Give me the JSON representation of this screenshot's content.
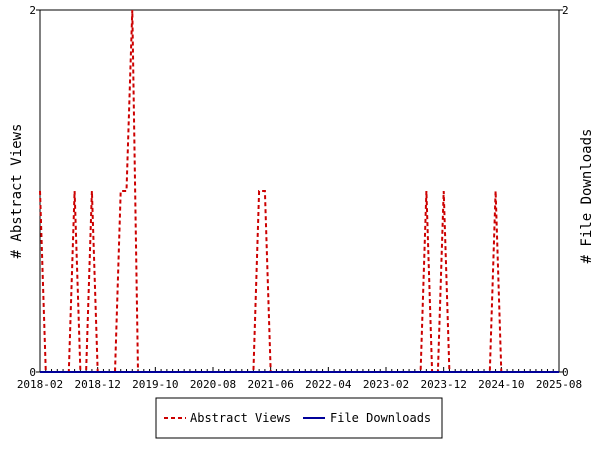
{
  "chart_data": {
    "type": "line",
    "title": "",
    "ylabel_left": "# Abstract Views",
    "ylabel_right": "# File Downloads",
    "x_ticks": [
      "2018-02",
      "2018-12",
      "2019-10",
      "2020-08",
      "2021-06",
      "2022-04",
      "2023-02",
      "2023-12",
      "2024-10",
      "2025-08"
    ],
    "xlim": [
      "2018-02",
      "2025-08"
    ],
    "ylim": [
      0,
      2
    ],
    "y_ticks_left": [
      "0",
      "2"
    ],
    "y_ticks_right": [
      "0",
      "2"
    ],
    "grid": false,
    "legend_position": "bottom",
    "series": [
      {
        "name": "Abstract Views",
        "color": "#cc0000",
        "style": "dashed",
        "axis": "left",
        "x": [
          "2018-02",
          "2018-03",
          "2018-04",
          "2018-05",
          "2018-06",
          "2018-07",
          "2018-08",
          "2018-09",
          "2018-10",
          "2018-11",
          "2018-12",
          "2019-01",
          "2019-02",
          "2019-03",
          "2019-04",
          "2019-05",
          "2019-06",
          "2019-07",
          "2019-08",
          "2019-09",
          "2019-10",
          "2019-11",
          "2021-03",
          "2021-04",
          "2021-05",
          "2021-06",
          "2021-07",
          "2023-08",
          "2023-09",
          "2023-10",
          "2023-11",
          "2023-12",
          "2024-01",
          "2024-08",
          "2024-09",
          "2024-10",
          "2024-11"
        ],
        "values": [
          1,
          0,
          0,
          0,
          0,
          0,
          1,
          0,
          0,
          1,
          0,
          0,
          0,
          0,
          1,
          1,
          2,
          0,
          0,
          0,
          0,
          0,
          0,
          1,
          1,
          0,
          0,
          0,
          1,
          0,
          0,
          1,
          0,
          0,
          1,
          0,
          0
        ]
      },
      {
        "name": "File Downloads",
        "color": "#000099",
        "style": "solid",
        "axis": "right",
        "x": [
          "2018-02",
          "2025-08"
        ],
        "values": [
          0,
          0
        ]
      }
    ]
  }
}
